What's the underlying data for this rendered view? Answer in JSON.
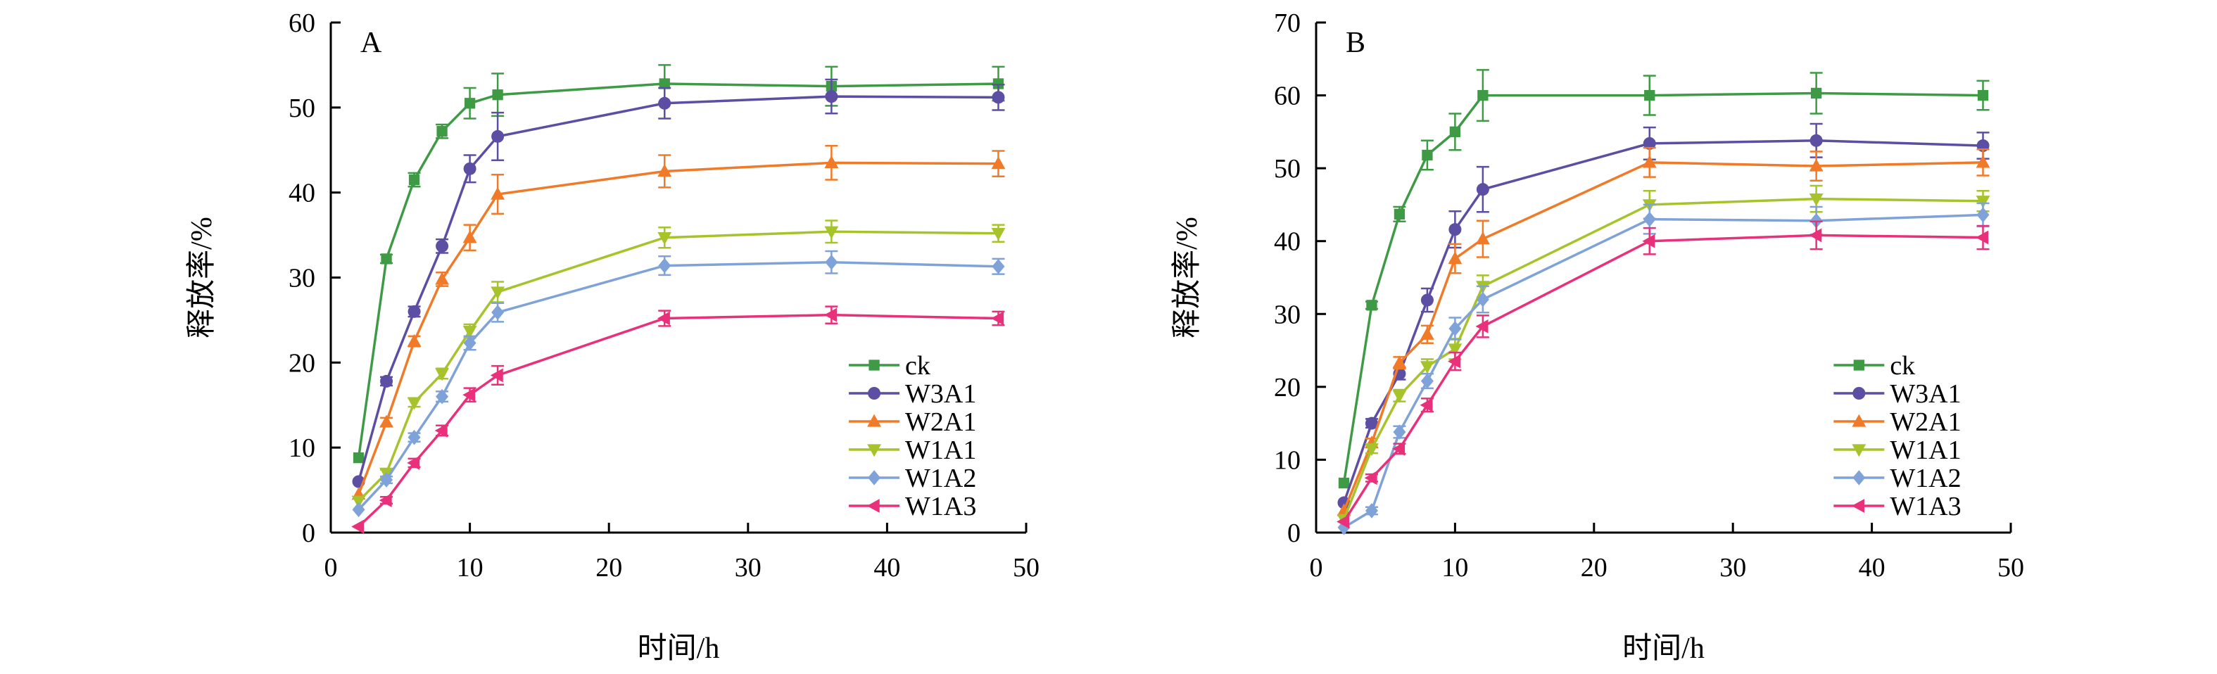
{
  "chart_data": [
    {
      "type": "line",
      "panel_label": "A",
      "xlabel": "时间/h",
      "ylabel": "释放率/%",
      "xlim": [
        0,
        50
      ],
      "ylim": [
        0,
        60
      ],
      "x_ticks": [
        0,
        10,
        20,
        30,
        40,
        50
      ],
      "y_ticks": [
        0,
        10,
        20,
        30,
        40,
        50,
        60
      ],
      "grid": false,
      "legend_position": "bottom-right",
      "x": [
        2,
        4,
        6,
        8,
        10,
        12,
        24,
        36,
        48
      ],
      "series": [
        {
          "name": "ck",
          "color": "#3f9a45",
          "marker": "square",
          "values": [
            8.8,
            32.2,
            41.5,
            47.2,
            50.5,
            51.5,
            52.8,
            52.5,
            52.8
          ],
          "errors": [
            0,
            0.5,
            0.8,
            0.8,
            1.8,
            2.5,
            2.2,
            2.3,
            2.0
          ]
        },
        {
          "name": "W3A1",
          "color": "#5b4ea3",
          "marker": "circle",
          "values": [
            6.0,
            17.8,
            26.0,
            33.7,
            42.8,
            46.6,
            50.5,
            51.3,
            51.2
          ],
          "errors": [
            0,
            0.5,
            0.6,
            0.8,
            1.6,
            2.8,
            1.8,
            2.0,
            1.5
          ]
        },
        {
          "name": "W2A1",
          "color": "#f07a28",
          "marker": "triangle-up",
          "values": [
            4.5,
            13.0,
            22.5,
            29.8,
            34.7,
            39.8,
            42.5,
            43.5,
            43.4
          ],
          "errors": [
            0,
            0.5,
            0.6,
            0.8,
            1.5,
            2.3,
            1.9,
            2.0,
            1.5
          ]
        },
        {
          "name": "W1A1",
          "color": "#a6c32c",
          "marker": "triangle-down",
          "values": [
            3.7,
            7.0,
            15.3,
            18.7,
            23.7,
            28.3,
            34.7,
            35.4,
            35.2
          ],
          "errors": [
            0,
            0.4,
            0.5,
            0.6,
            0.8,
            1.2,
            1.2,
            1.3,
            1.0
          ]
        },
        {
          "name": "W1A2",
          "color": "#7fa2d8",
          "marker": "diamond",
          "values": [
            2.7,
            6.2,
            11.2,
            16.0,
            22.3,
            25.9,
            31.4,
            31.8,
            31.3
          ],
          "errors": [
            0,
            0.4,
            0.5,
            0.6,
            0.8,
            1.1,
            1.1,
            1.3,
            0.9
          ]
        },
        {
          "name": "W1A3",
          "color": "#e8317a",
          "marker": "triangle-left",
          "values": [
            0.7,
            3.8,
            8.2,
            12.0,
            16.2,
            18.5,
            25.2,
            25.6,
            25.2
          ],
          "errors": [
            0,
            0.4,
            0.5,
            0.6,
            0.8,
            1.1,
            0.9,
            1.0,
            0.8
          ]
        }
      ]
    },
    {
      "type": "line",
      "panel_label": "B",
      "xlabel": "时间/h",
      "ylabel": "释放率/%",
      "xlim": [
        0,
        50
      ],
      "ylim": [
        0,
        70
      ],
      "x_ticks": [
        0,
        10,
        20,
        30,
        40,
        50
      ],
      "y_ticks": [
        0,
        10,
        20,
        30,
        40,
        50,
        60,
        70
      ],
      "grid": false,
      "legend_position": "bottom-right",
      "x": [
        2,
        4,
        6,
        8,
        10,
        12,
        24,
        36,
        48
      ],
      "series": [
        {
          "name": "ck",
          "color": "#3f9a45",
          "marker": "square",
          "values": [
            6.8,
            31.2,
            43.7,
            51.8,
            55.0,
            60.0,
            60.0,
            60.3,
            60.0
          ],
          "errors": [
            0,
            0.5,
            1.0,
            2.0,
            2.5,
            3.5,
            2.7,
            2.8,
            2.0
          ]
        },
        {
          "name": "W3A1",
          "color": "#5b4ea3",
          "marker": "circle",
          "values": [
            4.1,
            15.0,
            21.8,
            31.9,
            41.6,
            47.1,
            53.4,
            53.8,
            53.1
          ],
          "errors": [
            0,
            0.6,
            0.8,
            1.6,
            2.5,
            3.1,
            2.2,
            2.3,
            1.8
          ]
        },
        {
          "name": "W2A1",
          "color": "#f07a28",
          "marker": "triangle-up",
          "values": [
            3.0,
            12.3,
            23.3,
            27.2,
            37.6,
            40.3,
            50.8,
            50.3,
            50.8
          ],
          "errors": [
            0,
            0.6,
            0.8,
            1.2,
            2.0,
            2.5,
            2.0,
            2.0,
            1.8
          ]
        },
        {
          "name": "W1A1",
          "color": "#a6c32c",
          "marker": "triangle-down",
          "values": [
            1.8,
            11.5,
            18.8,
            22.8,
            25.2,
            33.8,
            45.0,
            45.8,
            45.5
          ],
          "errors": [
            0,
            0.6,
            0.8,
            1.0,
            1.4,
            1.5,
            1.9,
            1.8,
            1.4
          ]
        },
        {
          "name": "W1A2",
          "color": "#7fa2d8",
          "marker": "diamond",
          "values": [
            0.7,
            3.0,
            13.8,
            20.8,
            28.0,
            32.0,
            43.0,
            42.8,
            43.6
          ],
          "errors": [
            0,
            0.5,
            0.8,
            1.0,
            1.5,
            1.8,
            2.0,
            1.9,
            1.6
          ]
        },
        {
          "name": "W1A3",
          "color": "#e8317a",
          "marker": "triangle-left",
          "values": [
            1.5,
            7.5,
            11.5,
            17.5,
            23.5,
            28.3,
            40.0,
            40.8,
            40.5
          ],
          "errors": [
            0,
            0.5,
            0.7,
            0.9,
            1.2,
            1.5,
            1.8,
            1.9,
            1.6
          ]
        }
      ]
    }
  ]
}
